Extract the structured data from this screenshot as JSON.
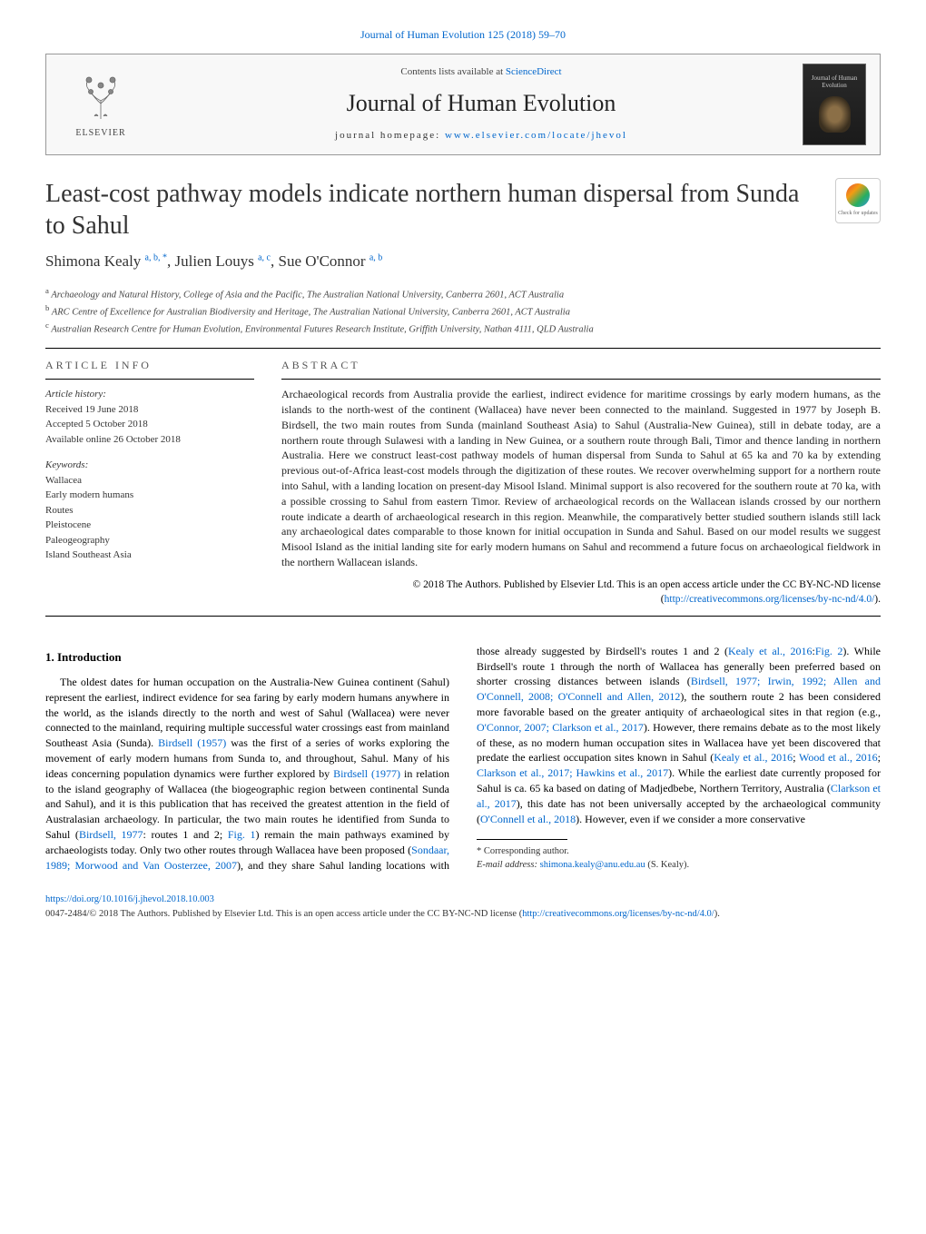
{
  "journal_link": "Journal of Human Evolution 125 (2018) 59–70",
  "header": {
    "elsevier": "ELSEVIER",
    "contents_prefix": "Contents lists available at ",
    "contents_link": "ScienceDirect",
    "journal_name": "Journal of Human Evolution",
    "homepage_prefix": "journal homepage: ",
    "homepage_url": "www.elsevier.com/locate/jhevol",
    "cover_title": "Journal of Human Evolution"
  },
  "crossmark": "Check for updates",
  "article": {
    "title": "Least-cost pathway models indicate northern human dispersal from Sunda to Sahul",
    "authors_html": "Shimona Kealy <sup>a, b, *</sup>, Julien Louys <sup>a, c</sup>, Sue O'Connor <sup>a, b</sup>",
    "affiliations": {
      "a": "Archaeology and Natural History, College of Asia and the Pacific, The Australian National University, Canberra 2601, ACT Australia",
      "b": "ARC Centre of Excellence for Australian Biodiversity and Heritage, The Australian National University, Canberra 2601, ACT Australia",
      "c": "Australian Research Centre for Human Evolution, Environmental Futures Research Institute, Griffith University, Nathan 4111, QLD Australia"
    }
  },
  "info": {
    "heading": "ARTICLE INFO",
    "history_label": "Article history:",
    "received": "Received 19 June 2018",
    "accepted": "Accepted 5 October 2018",
    "online": "Available online 26 October 2018",
    "keywords_label": "Keywords:",
    "keywords": [
      "Wallacea",
      "Early modern humans",
      "Routes",
      "Pleistocene",
      "Paleogeography",
      "Island Southeast Asia"
    ]
  },
  "abstract": {
    "heading": "ABSTRACT",
    "text": "Archaeological records from Australia provide the earliest, indirect evidence for maritime crossings by early modern humans, as the islands to the north-west of the continent (Wallacea) have never been connected to the mainland. Suggested in 1977 by Joseph B. Birdsell, the two main routes from Sunda (mainland Southeast Asia) to Sahul (Australia-New Guinea), still in debate today, are a northern route through Sulawesi with a landing in New Guinea, or a southern route through Bali, Timor and thence landing in northern Australia. Here we construct least-cost pathway models of human dispersal from Sunda to Sahul at 65 ka and 70 ka by extending previous out-of-Africa least-cost models through the digitization of these routes. We recover overwhelming support for a northern route into Sahul, with a landing location on present-day Misool Island. Minimal support is also recovered for the southern route at 70 ka, with a possible crossing to Sahul from eastern Timor. Review of archaeological records on the Wallacean islands crossed by our northern route indicate a dearth of archaeological research in this region. Meanwhile, the comparatively better studied southern islands still lack any archaeological dates comparable to those known for initial occupation in Sunda and Sahul. Based on our model results we suggest Misool Island as the initial landing site for early modern humans on Sahul and recommend a future focus on archaeological fieldwork in the northern Wallacean islands.",
    "copyright": "© 2018 The Authors. Published by Elsevier Ltd. This is an open access article under the CC BY-NC-ND license (",
    "license_url": "http://creativecommons.org/licenses/by-nc-nd/4.0/",
    "copyright_suffix": ")."
  },
  "body": {
    "intro_heading": "1. Introduction",
    "col1_p1_a": "The oldest dates for human occupation on the Australia-New Guinea continent (Sahul) represent the earliest, indirect evidence for sea faring by early modern humans anywhere in the world, as the islands directly to the north and west of Sahul (Wallacea) were never connected to the mainland, requiring multiple successful water crossings east from mainland Southeast Asia (Sunda). ",
    "col1_cite1": "Birdsell (1957)",
    "col1_p1_b": " was the first of a series of works exploring the movement of early modern humans from Sunda to, and throughout, Sahul. Many of his ideas concerning population dynamics were further explored by ",
    "col1_cite2": "Birdsell (1977)",
    "col1_p1_c": " in relation to the island geography of Wallacea (the biogeographic region between continental Sunda and Sahul), and it is this publication that has received the greatest attention in the field of Australasian archaeology. In particular, the two main routes he identified from Sunda",
    "col2_a": "to Sahul (",
    "col2_cite1": "Birdsell, 1977",
    "col2_b": ": routes 1 and 2; ",
    "col2_cite2": "Fig. 1",
    "col2_c": ") remain the main pathways examined by archaeologists today. Only two other routes through Wallacea have been proposed (",
    "col2_cite3": "Sondaar, 1989; Morwood and Van Oosterzee, 2007",
    "col2_d": "), and they share Sahul landing locations with those already suggested by Birdsell's routes 1 and 2 (",
    "col2_cite4": "Kealy et al., 2016",
    "col2_e": ":",
    "col2_cite5": "Fig. 2",
    "col2_f": "). While Birdsell's route 1 through the north of Wallacea has generally been preferred based on shorter crossing distances between islands (",
    "col2_cite6": "Birdsell, 1977; Irwin, 1992; Allen and O'Connell, 2008; O'Connell and Allen, 2012",
    "col2_g": "), the southern route 2 has been considered more favorable based on the greater antiquity of archaeological sites in that region (e.g., ",
    "col2_cite7": "O'Connor, 2007; Clarkson et al., 2017",
    "col2_h": "). However, there remains debate as to the most likely of these, as no modern human occupation sites in Wallacea have yet been discovered that predate the earliest occupation sites known in Sahul (",
    "col2_cite8": "Kealy et al., 2016",
    "col2_i": "; ",
    "col2_cite9": "Wood et al., 2016",
    "col2_j": "; ",
    "col2_cite10": "Clarkson et al., 2017; Hawkins et al., 2017",
    "col2_k": "). While the earliest date currently proposed for Sahul is ca. 65 ka based on dating of Madjedbebe, Northern Territory, Australia (",
    "col2_cite11": "Clarkson et al., 2017",
    "col2_l": "), this date has not been universally accepted by the archaeological community (",
    "col2_cite12": "O'Connell et al., 2018",
    "col2_m": "). However, even if we consider a more conservative"
  },
  "footnote": {
    "corr": "* Corresponding author.",
    "email_label": "E-mail address: ",
    "email": "shimona.kealy@anu.edu.au",
    "email_suffix": " (S. Kealy)."
  },
  "footer": {
    "doi": "https://doi.org/10.1016/j.jhevol.2018.10.003",
    "copyright": "0047-2484/© 2018 The Authors. Published by Elsevier Ltd. This is an open access article under the CC BY-NC-ND license (",
    "license_url": "http://creativecommons.org/licenses/by-nc-nd/4.0/",
    "suffix": ")."
  },
  "colors": {
    "link": "#0066cc",
    "text": "#222222",
    "muted": "#555555"
  }
}
